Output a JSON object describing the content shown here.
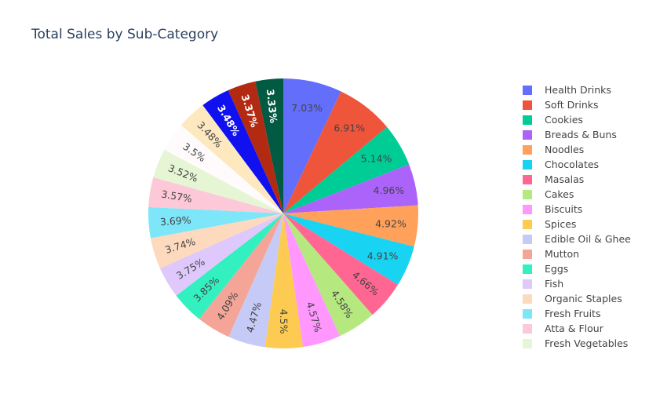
{
  "chart_data": {
    "type": "pie",
    "title": "Total Sales by Sub-Category",
    "legend_position": "right",
    "direction": "clockwise",
    "slices": [
      {
        "label": "Health Drinks",
        "value": 7.03,
        "text": "7.03%",
        "color": "#636efa"
      },
      {
        "label": "Soft Drinks",
        "value": 6.91,
        "text": "6.91%",
        "color": "#EF553B"
      },
      {
        "label": "Cookies",
        "value": 5.14,
        "text": "5.14%",
        "color": "#00cc96"
      },
      {
        "label": "Breads & Buns",
        "value": 4.96,
        "text": "4.96%",
        "color": "#ab63fa"
      },
      {
        "label": "Noodles",
        "value": 4.92,
        "text": "4.92%",
        "color": "#FFA15A"
      },
      {
        "label": "Chocolates",
        "value": 4.91,
        "text": "4.91%",
        "color": "#19d3f3"
      },
      {
        "label": "Masalas",
        "value": 4.66,
        "text": "4.66%",
        "color": "#FF6692"
      },
      {
        "label": "Cakes",
        "value": 4.58,
        "text": "4.58%",
        "color": "#B6E880"
      },
      {
        "label": "Biscuits",
        "value": 4.57,
        "text": "4.57%",
        "color": "#FF97FF"
      },
      {
        "label": "Spices",
        "value": 4.5,
        "text": "4.5%",
        "color": "#FECB52"
      },
      {
        "label": "Edible Oil & Ghee",
        "value": 4.47,
        "text": "4.47%",
        "color": "#c6caf7"
      },
      {
        "label": "Mutton",
        "value": 4.09,
        "text": "4.09%",
        "color": "#f4a597"
      },
      {
        "label": "Eggs",
        "value": 3.85,
        "text": "3.85%",
        "color": "#33f0c0"
      },
      {
        "label": "Fish",
        "value": 3.75,
        "text": "3.75%",
        "color": "#dfc8fc"
      },
      {
        "label": "Organic Staples",
        "value": 3.74,
        "text": "3.74%",
        "color": "#fdd9bd"
      },
      {
        "label": "Fresh Fruits",
        "value": 3.69,
        "text": "3.69%",
        "color": "#7ee6f9"
      },
      {
        "label": "Atta & Flour",
        "value": 3.57,
        "text": "3.57%",
        "color": "#fdc9d8"
      },
      {
        "label": "Fresh Vegetables",
        "value": 3.52,
        "text": "3.52%",
        "color": "#e6f6d4"
      },
      {
        "label": "",
        "value": 3.5,
        "text": "3.5%",
        "color": "#fffbfd"
      },
      {
        "label": "",
        "value": 3.48,
        "text": "3.48%",
        "color": "#fde8bf"
      },
      {
        "label": "",
        "value": 3.48,
        "text": "3.48%",
        "color": "#1010f0"
      },
      {
        "label": "",
        "value": 3.37,
        "text": "3.37%",
        "color": "#b32a12"
      },
      {
        "label": "",
        "value": 3.33,
        "text": "3.33%",
        "color": "#015a41"
      }
    ]
  }
}
